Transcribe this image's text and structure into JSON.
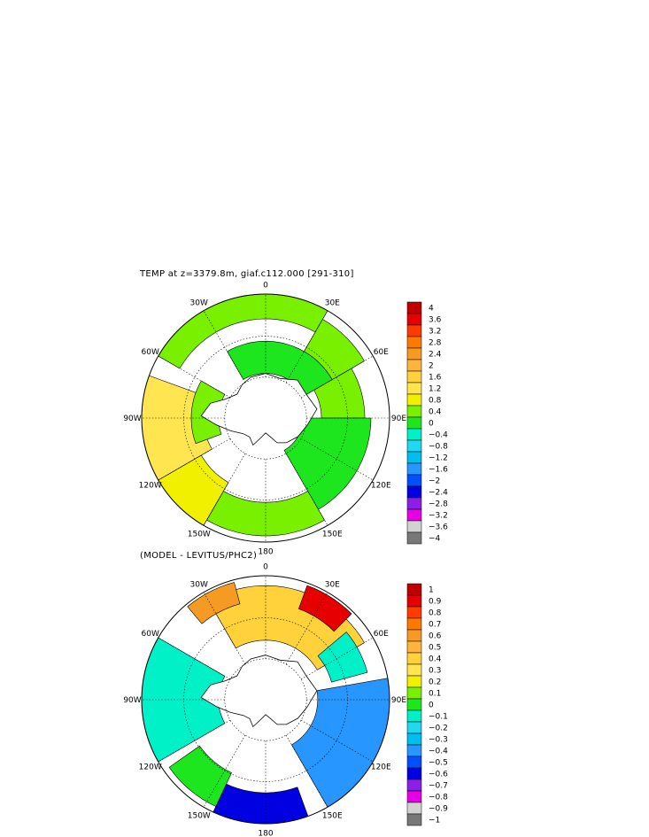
{
  "panels": [
    {
      "title": "TEMP at z=3379.8m, giaf.c112.000 [291-310]",
      "lon_labels": [
        "0",
        "30E",
        "60E",
        "90E",
        "120E",
        "150E",
        "180",
        "150W",
        "120W",
        "90W",
        "60W",
        "30W"
      ],
      "colorbar": {
        "labels": [
          "4",
          "3.6",
          "3.2",
          "2.8",
          "2.4",
          "2",
          "1.6",
          "1.2",
          "0.8",
          "0.4",
          "0",
          "-0.4",
          "-0.8",
          "-1.2",
          "-1.6",
          "-2",
          "-2.4",
          "-2.8",
          "-3.2",
          "-3.6",
          "-4"
        ],
        "colors": [
          "#c00000",
          "#e60000",
          "#ff3c00",
          "#ff7800",
          "#f59b24",
          "#ffb43c",
          "#ffd23c",
          "#ffe650",
          "#f0f000",
          "#78f000",
          "#1ee61e",
          "#00f0c8",
          "#22d8f0",
          "#00bef0",
          "#2896ff",
          "#0050ff",
          "#0000e0",
          "#8c1ee6",
          "#e600e6",
          "#d2d2d2",
          "#787878"
        ]
      }
    },
    {
      "title": "(MODEL - LEVITUS/PHC2)",
      "lon_labels": [
        "0",
        "30E",
        "60E",
        "90E",
        "120E",
        "150E",
        "180",
        "150W",
        "120W",
        "90W",
        "60W",
        "30W"
      ],
      "colorbar": {
        "labels": [
          "1",
          "0.9",
          "0.8",
          "0.7",
          "0.6",
          "0.5",
          "0.4",
          "0.3",
          "0.2",
          "0.1",
          "0",
          "-0.1",
          "-0.2",
          "-0.3",
          "-0.4",
          "-0.5",
          "-0.6",
          "-0.7",
          "-0.8",
          "-0.9",
          "-1"
        ],
        "colors": [
          "#c00000",
          "#e60000",
          "#ff3c00",
          "#ff7800",
          "#f59b24",
          "#ffb43c",
          "#ffd23c",
          "#ffe650",
          "#f0f000",
          "#78f000",
          "#1ee61e",
          "#00f0c8",
          "#22d8f0",
          "#00bef0",
          "#2896ff",
          "#0050ff",
          "#0000e0",
          "#8c1ee6",
          "#e600e6",
          "#d2d2d2",
          "#787878"
        ]
      }
    }
  ],
  "chart_data": [
    {
      "type": "heatmap",
      "title": "TEMP at z=3379.8m, giaf.c112.000 [291-310]",
      "projection": "south polar stereographic",
      "lon_tick_labels": [
        "0",
        "30E",
        "60E",
        "90E",
        "120E",
        "150E",
        "180",
        "150W",
        "120W",
        "90W",
        "60W",
        "30W"
      ],
      "color_levels": [
        4,
        3.6,
        3.2,
        2.8,
        2.4,
        2,
        1.6,
        1.2,
        0.8,
        0.4,
        0,
        -0.4,
        -0.8,
        -1.2,
        -1.6,
        -2,
        -2.4,
        -2.8,
        -3.2,
        -3.6,
        -4
      ],
      "regions": [
        {
          "sector": "300E-30E",
          "value": 0.2
        },
        {
          "sector": "30E-60E",
          "value": 0.2
        },
        {
          "sector": "330E-60E inner",
          "value": -0.4
        },
        {
          "sector": "60E-90E",
          "value": 0.2
        },
        {
          "sector": "90E-150E",
          "value": -0.2
        },
        {
          "sector": "150E-210E",
          "value": 0.2
        },
        {
          "sector": "210E-240E",
          "value": 0.6
        },
        {
          "sector": "240E-290E",
          "value": 0.8
        },
        {
          "sector": "250E-300E",
          "value": 0.2
        }
      ]
    },
    {
      "type": "heatmap",
      "title": "(MODEL - LEVITUS/PHC2)",
      "projection": "south polar stereographic",
      "lon_tick_labels": [
        "0",
        "30E",
        "60E",
        "90E",
        "120E",
        "150E",
        "180",
        "150W",
        "120W",
        "90W",
        "60W",
        "30W"
      ],
      "color_levels": [
        1,
        0.9,
        0.8,
        0.7,
        0.6,
        0.5,
        0.4,
        0.3,
        0.2,
        0.1,
        0,
        -0.1,
        -0.2,
        -0.3,
        -0.4,
        -0.5,
        -0.6,
        -0.7,
        -0.8,
        -0.9,
        -1
      ],
      "regions": [
        {
          "sector": "330E-60E",
          "value": 0.3
        },
        {
          "sector": "320E-345E",
          "value": 0.5
        },
        {
          "sector": "20E-45E",
          "value": 0.8
        },
        {
          "sector": "50E-75E",
          "value": -0.2
        },
        {
          "sector": "80E-150E",
          "value": -0.5
        },
        {
          "sector": "160E-205E",
          "value": -0.7
        },
        {
          "sector": "205E-235E",
          "value": -0.1
        },
        {
          "sector": "240E-300E",
          "value": -0.2
        }
      ]
    }
  ]
}
